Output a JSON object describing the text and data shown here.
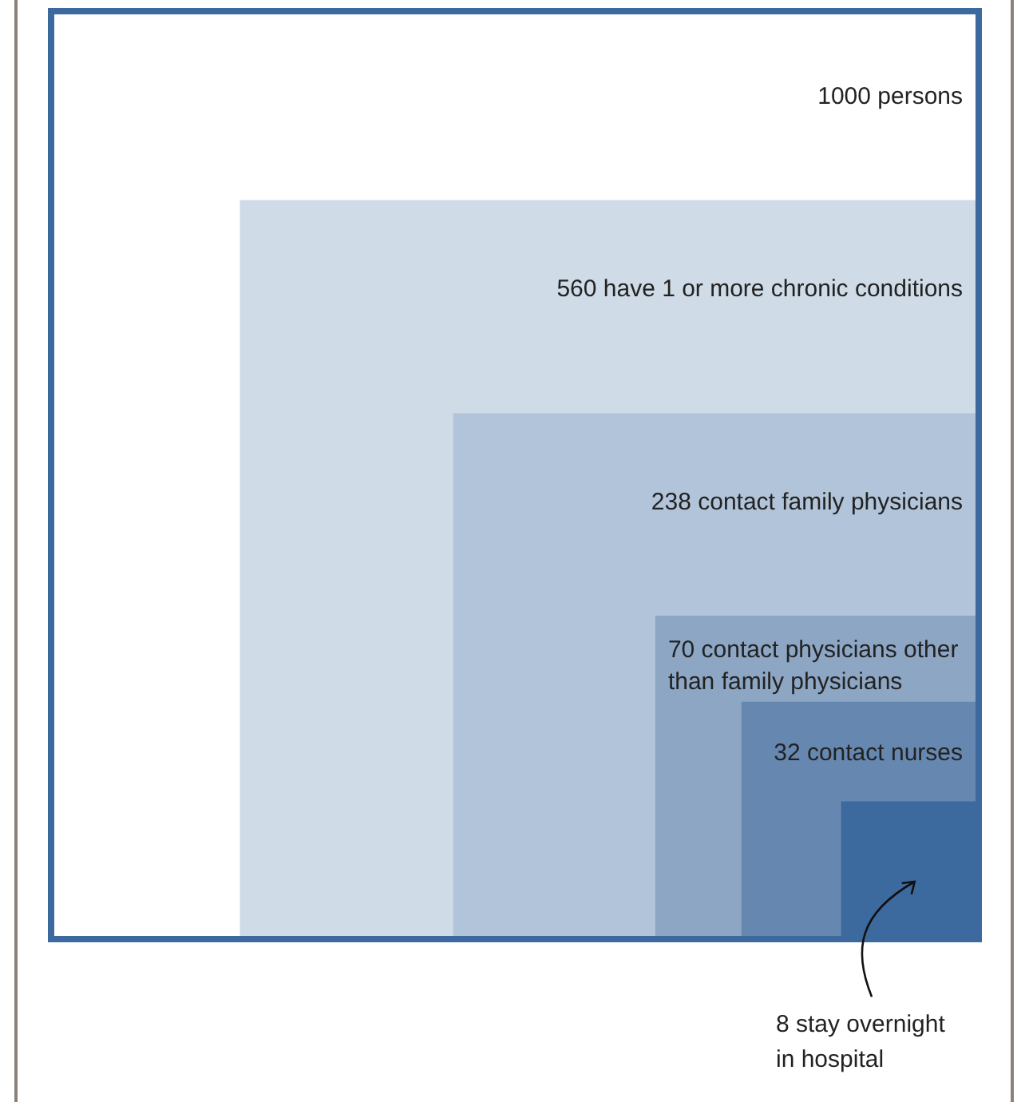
{
  "chart_data": {
    "type": "other",
    "categories": [
      "persons",
      "have 1 or more chronic conditions",
      "contact family physicians",
      "contact physicians other than family physicians",
      "contact nurses",
      "stay overnight in hospital"
    ],
    "values": [
      1000,
      560,
      238,
      70,
      32,
      8
    ],
    "data_labels": true,
    "colors": [
      "#ffffff",
      "#cfdbe6",
      "#b2c4d9",
      "#8ca6c4",
      "#6688b0",
      "#3d6a9e"
    ]
  }
}
